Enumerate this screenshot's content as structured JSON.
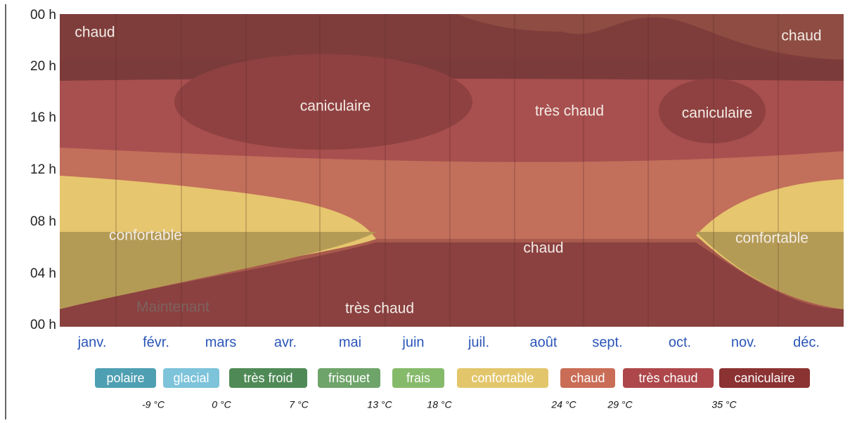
{
  "yticks": [
    "00 h",
    "20 h",
    "16 h",
    "12 h",
    "08 h",
    "04 h",
    "00 h"
  ],
  "months": [
    "janv.",
    "févr.",
    "mars",
    "avr.",
    "mai",
    "juin",
    "juil.",
    "août",
    "sept.",
    "oct.",
    "nov.",
    "déc."
  ],
  "regions": [
    "chaud",
    "chaud",
    "caniculaire",
    "très chaud",
    "caniculaire",
    "confortable",
    "confortable",
    "chaud",
    "très chaud"
  ],
  "now_label": "Maintenant",
  "legend": [
    {
      "name": "polaire",
      "color": "#4f9fb2"
    },
    {
      "name": "glacial",
      "color": "#7dc3da"
    },
    {
      "name": "très froid",
      "color": "#4f8a56"
    },
    {
      "name": "frisquet",
      "color": "#6ea46a"
    },
    {
      "name": "frais",
      "color": "#86ba6b"
    },
    {
      "name": "confortable",
      "color": "#e3c66c"
    },
    {
      "name": "chaud",
      "color": "#c96d56"
    },
    {
      "name": "très chaud",
      "color": "#ad474b"
    },
    {
      "name": "caniculaire",
      "color": "#8b3232"
    }
  ],
  "thresholds": [
    "-9 °C",
    "0 °C",
    "7 °C",
    "13 °C",
    "18 °C",
    "24 °C",
    "29 °C",
    "35 °C"
  ]
}
